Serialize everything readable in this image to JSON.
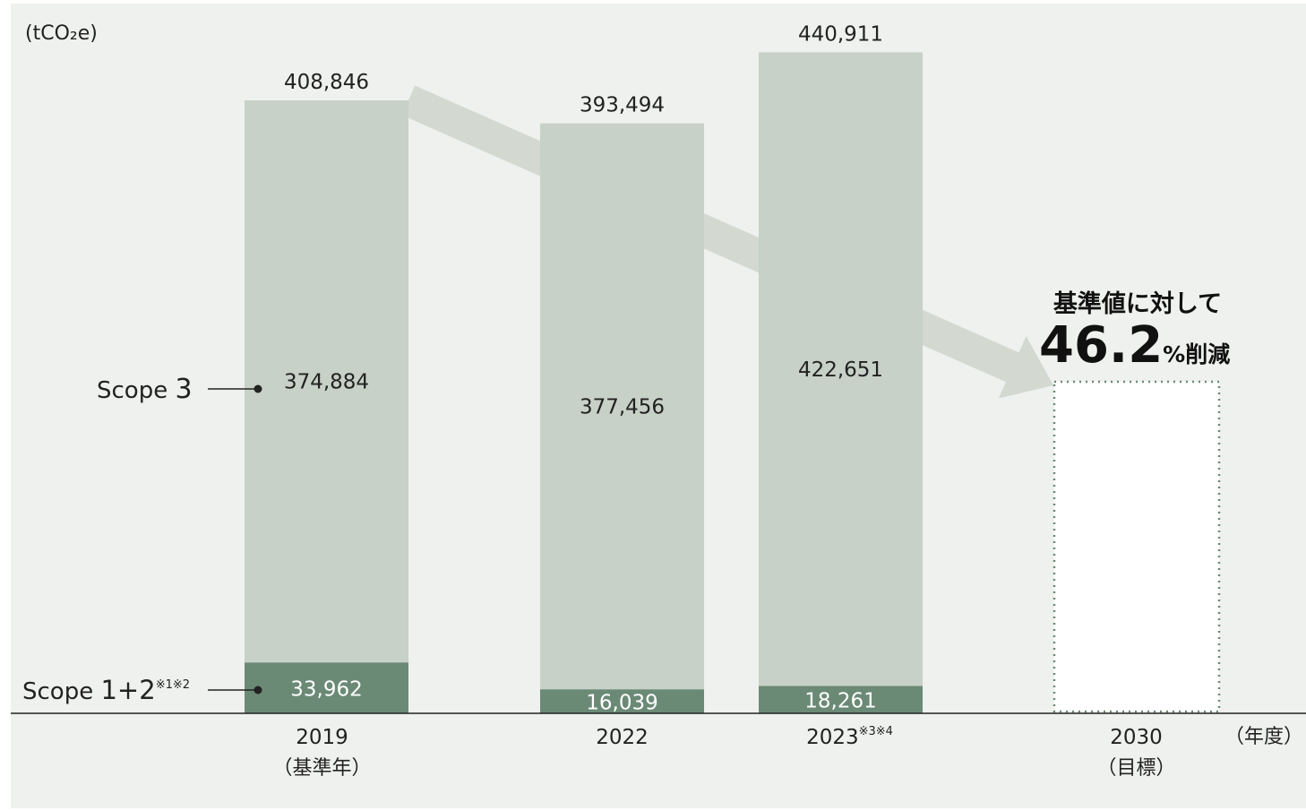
{
  "chart_data": {
    "type": "bar",
    "stacked": true,
    "unit_label": "(tCO₂e)",
    "x_unit_label": "（年度）",
    "categories": [
      {
        "year": "2019",
        "note": "",
        "sub": "（基準年）"
      },
      {
        "year": "2022",
        "note": "",
        "sub": ""
      },
      {
        "year": "2023",
        "note": "※3※4",
        "sub": ""
      },
      {
        "year": "2030",
        "note": "",
        "sub": "（目標）"
      }
    ],
    "series": [
      {
        "name": "Scope 1+2",
        "note": "※1※2",
        "values": [
          33962,
          16039,
          18261,
          null
        ],
        "color": "#6b8a76"
      },
      {
        "name": "Scope 3",
        "note": "",
        "values": [
          374884,
          377456,
          422651,
          null
        ],
        "color": "#c7d1c7"
      }
    ],
    "totals": [
      408846,
      393494,
      440911,
      null
    ],
    "value_labels": {
      "totals": [
        "408,846",
        "393,494",
        "440,911",
        ""
      ],
      "scope12": [
        "33,962",
        "16,039",
        "18,261",
        ""
      ],
      "scope3": [
        "374,884",
        "377,456",
        "422,651",
        ""
      ]
    },
    "legend": {
      "scope3": {
        "name": "Scope ",
        "digit": "3",
        "note": ""
      },
      "scope12": {
        "name": "Scope ",
        "digit": "1+2",
        "note": "※1※2"
      }
    },
    "target": {
      "line1": "基準値に対して",
      "big": "46.2",
      "suffix": "%削減",
      "reduction_pct": 46.2
    },
    "ylim": [
      0,
      460000
    ],
    "grid": false,
    "colors": {
      "background": "#eff1ee",
      "scope3": "#c7d1c7",
      "scope12": "#6b8a76",
      "arrow": "#d3d8d1",
      "target_border": "#6b8a76",
      "text": "#222222"
    }
  }
}
